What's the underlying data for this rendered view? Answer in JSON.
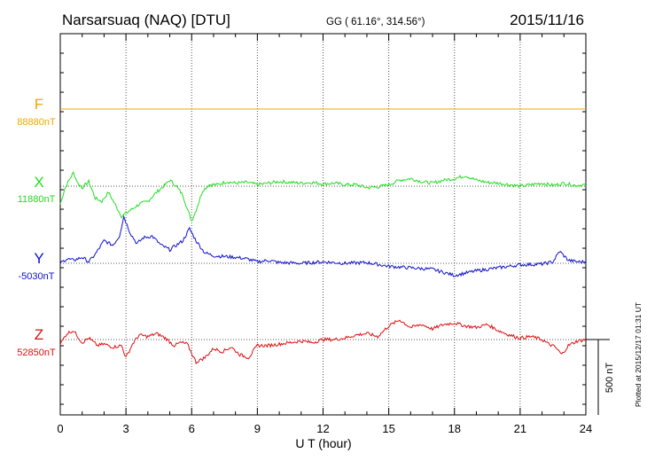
{
  "header": {
    "station": "Narsarsuaq (NAQ)  [DTU]",
    "coords": "GG ( 61.16°, 314.56°)",
    "date": "2015/11/16"
  },
  "footer": {
    "plotted": "Plotted at 2015/12/17 01:31  UT"
  },
  "colors": {
    "F": "#f0a800",
    "X": "#22dd22",
    "Y": "#1010cc",
    "Z": "#dd1010",
    "axis": "#000000",
    "grid": "#444444"
  },
  "chart_data": {
    "type": "line",
    "title": "",
    "xlabel": "U T (hour)",
    "xlim": [
      0,
      24
    ],
    "xticks": [
      "0",
      "3",
      "6",
      "9",
      "12",
      "15",
      "18",
      "21",
      "24"
    ],
    "scale_bar": {
      "label": "500 nT",
      "nT": 500
    },
    "grid": true,
    "series": [
      {
        "name": "F",
        "baseline_label": "88880nT",
        "color": "#f0a800",
        "x": [
          0,
          24
        ],
        "values": [
          0,
          0
        ]
      },
      {
        "name": "X",
        "baseline_label": "11880nT",
        "color": "#22dd22",
        "x": [
          0,
          0.2,
          0.4,
          0.6,
          0.8,
          1.0,
          1.3,
          1.6,
          1.9,
          2.2,
          2.5,
          2.8,
          3.0,
          3.3,
          3.6,
          4.0,
          4.4,
          4.8,
          5.0,
          5.3,
          5.6,
          5.8,
          6.0,
          6.2,
          6.5,
          6.8,
          7.2,
          7.6,
          8.0,
          8.5,
          9.0,
          9.5,
          10,
          10.5,
          11,
          11.5,
          12,
          12.5,
          13,
          13.5,
          14,
          14.5,
          15,
          15.5,
          16,
          16.5,
          17,
          17.5,
          18,
          18.5,
          19,
          19.5,
          20,
          20.5,
          21,
          21.5,
          22,
          22.5,
          23,
          23.5,
          24
        ],
        "values": [
          -120,
          -20,
          40,
          90,
          20,
          -10,
          30,
          -80,
          -100,
          -40,
          -120,
          -200,
          -180,
          -150,
          -120,
          -100,
          -40,
          10,
          40,
          0,
          -60,
          -150,
          -230,
          -160,
          -30,
          10,
          10,
          30,
          20,
          25,
          10,
          20,
          30,
          25,
          20,
          25,
          15,
          20,
          10,
          10,
          -10,
          -5,
          10,
          40,
          50,
          30,
          20,
          40,
          50,
          70,
          40,
          25,
          20,
          10,
          0,
          10,
          20,
          5,
          20,
          5,
          10
        ]
      },
      {
        "name": "Y",
        "baseline_label": "-5030nT",
        "color": "#1010cc",
        "x": [
          0,
          0.3,
          0.6,
          1.0,
          1.3,
          1.6,
          2.0,
          2.4,
          2.7,
          2.9,
          3.2,
          3.5,
          3.8,
          4.2,
          4.6,
          5.0,
          5.3,
          5.6,
          5.9,
          6.2,
          6.6,
          7.0,
          7.5,
          8.0,
          8.5,
          9.0,
          9.5,
          10,
          11,
          12,
          13,
          14,
          15,
          16,
          17,
          18,
          19,
          20,
          21,
          22,
          22.5,
          22.8,
          23.2,
          23.6,
          24
        ],
        "values": [
          0,
          30,
          20,
          40,
          10,
          60,
          150,
          120,
          180,
          310,
          200,
          130,
          170,
          180,
          120,
          90,
          120,
          150,
          230,
          150,
          70,
          50,
          45,
          40,
          30,
          10,
          20,
          5,
          0,
          10,
          0,
          5,
          -20,
          -30,
          -40,
          -80,
          -50,
          -30,
          -10,
          -5,
          10,
          80,
          20,
          10,
          10
        ]
      },
      {
        "name": "Z",
        "baseline_label": "52850nT",
        "color": "#dd1010",
        "x": [
          0,
          0.3,
          0.6,
          1.0,
          1.3,
          1.7,
          2.0,
          2.4,
          2.8,
          3.0,
          3.3,
          3.6,
          4.0,
          4.4,
          4.8,
          5.2,
          5.5,
          5.8,
          6.2,
          6.6,
          7.0,
          7.4,
          7.8,
          8.2,
          8.6,
          9.0,
          9.5,
          10,
          10.5,
          11,
          11.5,
          12,
          12.5,
          13,
          13.5,
          14,
          14.5,
          15,
          15.5,
          16,
          16.5,
          17,
          17.5,
          18,
          18.5,
          19,
          19.5,
          20,
          20.5,
          21,
          21.5,
          22,
          22.3,
          22.6,
          22.9,
          23.2,
          23.6,
          24
        ],
        "values": [
          -30,
          40,
          60,
          -20,
          10,
          -40,
          -30,
          -50,
          -40,
          -120,
          -30,
          30,
          20,
          40,
          10,
          -40,
          -20,
          -30,
          -150,
          -120,
          -60,
          -80,
          -50,
          -100,
          -120,
          -40,
          -40,
          -30,
          -20,
          -10,
          -20,
          0,
          0,
          10,
          30,
          40,
          20,
          90,
          130,
          80,
          100,
          70,
          100,
          110,
          90,
          80,
          100,
          60,
          30,
          10,
          20,
          0,
          -30,
          -50,
          -100,
          -40,
          -10,
          0
        ]
      }
    ]
  }
}
